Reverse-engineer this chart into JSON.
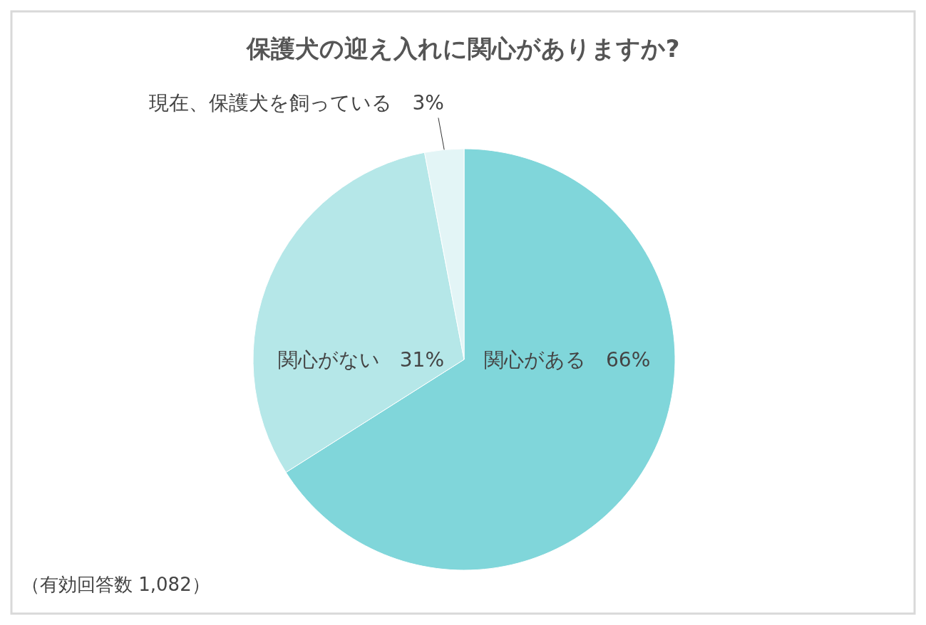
{
  "chart_data": {
    "type": "pie",
    "title": "保護犬の迎え入れに関心がありますか?",
    "categories": [
      "関心がある",
      "関心がない",
      "現在、保護犬を飼っている"
    ],
    "values": [
      66,
      31,
      3
    ],
    "value_labels": [
      "66%",
      "31%",
      "3%"
    ],
    "colors": [
      "#80d6da",
      "#b5e7e8",
      "#e3f5f6"
    ],
    "annotations": [
      "（有効回答数 1,082）"
    ]
  }
}
